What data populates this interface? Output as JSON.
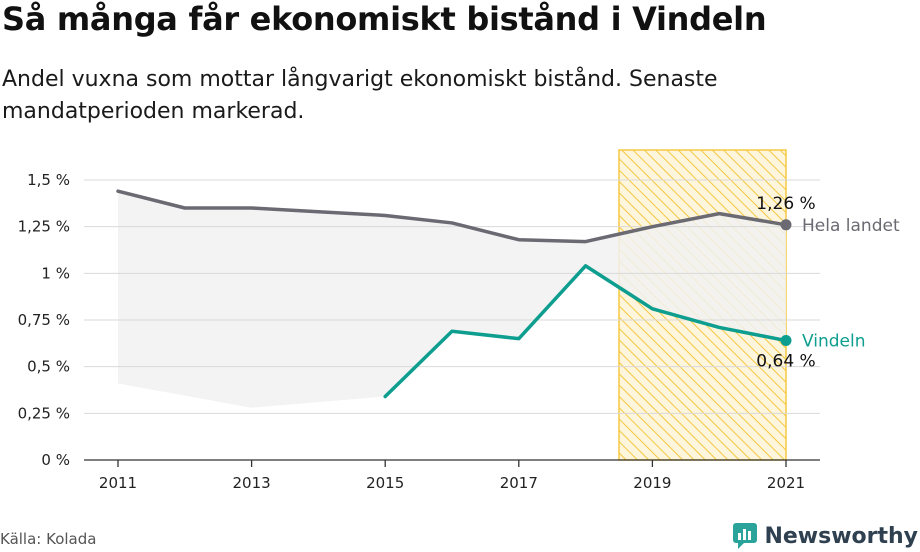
{
  "header": {
    "title": "Så många får ekonomiskt bistånd i Vindeln",
    "subtitle": "Andel vuxna som mottar långvarigt ekonomiskt bistånd. Senaste mandatperioden markerad."
  },
  "footer": {
    "source": "Källa: Kolada",
    "brand": "Newsworthy"
  },
  "colors": {
    "national": "#6b6a72",
    "vindeln": "#0e9e8f",
    "band": "#f1f1f1",
    "highlight": "#f5c842",
    "grid": "#d9d9d9"
  },
  "chart_data": {
    "type": "line",
    "x": [
      2011,
      2012,
      2013,
      2014,
      2015,
      2016,
      2017,
      2018,
      2019,
      2020,
      2021
    ],
    "x_tick_labels": [
      "2011",
      "2013",
      "2015",
      "2017",
      "2019",
      "2021"
    ],
    "y_tick_labels": [
      "0 %",
      "0,25 %",
      "0,5 %",
      "0,75 %",
      "1 %",
      "1,25 %",
      "1,5 %"
    ],
    "ylim": [
      0,
      1.5
    ],
    "highlight_period": [
      2018.5,
      2021
    ],
    "series": [
      {
        "name": "Hela landet",
        "values": [
          1.44,
          1.35,
          1.35,
          1.33,
          1.31,
          1.27,
          1.18,
          1.17,
          1.25,
          1.32,
          1.26
        ],
        "end_value_label": "1,26 %"
      },
      {
        "name": "Vindeln",
        "values": [
          null,
          null,
          null,
          null,
          0.34,
          0.69,
          0.65,
          1.04,
          0.81,
          0.71,
          0.64
        ],
        "end_value_label": "0,64 %"
      }
    ],
    "range_band": {
      "x": [
        2011,
        2013,
        2015
      ],
      "lower": [
        0.41,
        0.28,
        0.34
      ]
    }
  }
}
